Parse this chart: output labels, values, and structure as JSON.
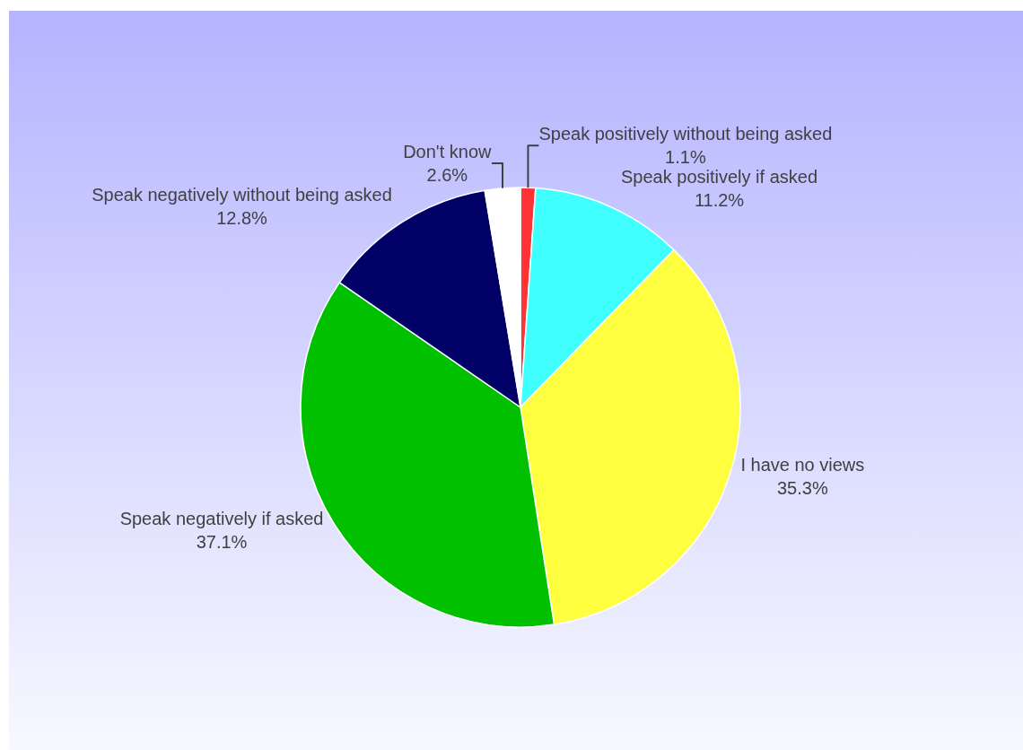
{
  "chart_data": {
    "type": "pie",
    "categories": [
      "Speak positively without being asked",
      "Speak positively if asked",
      "I have no views",
      "Speak negatively if asked",
      "Speak negatively without being asked",
      "Don't know"
    ],
    "values": [
      1.1,
      11.2,
      35.3,
      37.1,
      12.8,
      2.6
    ],
    "value_labels": [
      "1.1%",
      "11.2%",
      "35.3%",
      "37.1%",
      "12.8%",
      "2.6%"
    ],
    "colors": [
      "#ff3333",
      "#40ffff",
      "#ffff40",
      "#00c000",
      "#000066",
      "#ffffff"
    ],
    "legend": false
  }
}
